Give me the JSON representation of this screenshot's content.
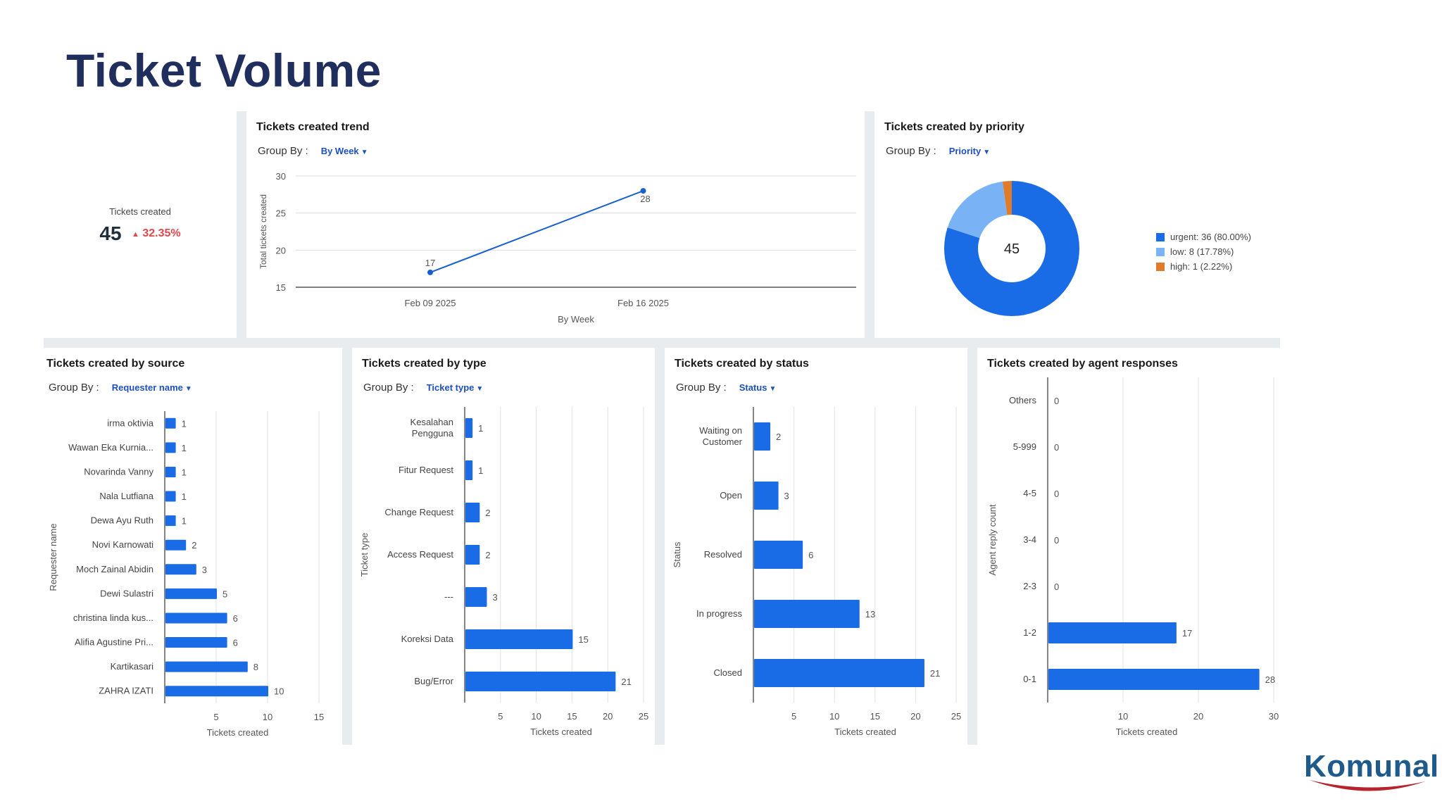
{
  "page": {
    "title": "Ticket Volume"
  },
  "kpi": {
    "label": "Tickets created",
    "value": "45",
    "delta_icon": "▲",
    "delta": "32.35%"
  },
  "group_by_label": "Group By :",
  "colors": {
    "bar": "#1a6be6",
    "line": "#1a5fcf",
    "urgent": "#1a6be6",
    "low": "#7ab3f5",
    "high": "#e07b2a",
    "title": "#1f2e5c"
  },
  "trend": {
    "title": "Tickets created trend",
    "group_value": "By Week",
    "chart_data": {
      "type": "line",
      "x": [
        "Feb 09 2025",
        "Feb 16 2025"
      ],
      "values": [
        17,
        28
      ],
      "point_labels": [
        "17",
        "28"
      ],
      "yticks": [
        "30",
        "25",
        "20",
        "15"
      ],
      "ylim": [
        15,
        30
      ],
      "xlabel": "By Week",
      "ylabel": "Total tickets created"
    }
  },
  "priority": {
    "title": "Tickets created by priority",
    "group_value": "Priority",
    "chart_data": {
      "type": "pie",
      "center_label": "45",
      "slices": [
        {
          "name": "urgent",
          "value": 36,
          "legend": "urgent: 36 (80.00%)"
        },
        {
          "name": "low",
          "value": 8,
          "legend": "low: 8 (17.78%)"
        },
        {
          "name": "high",
          "value": 1,
          "legend": "high: 1 (2.22%)"
        }
      ]
    }
  },
  "source": {
    "title": "Tickets created by source",
    "group_value": "Requester name",
    "chart_data": {
      "type": "bar",
      "categories": [
        "irma oktivia",
        "Wawan Eka Kurnia...",
        "Novarinda Vanny",
        "Nala Lutfiana",
        "Dewa Ayu Ruth",
        "Novi Karnowati",
        "Moch Zainal Abidin",
        "Dewi Sulastri",
        "christina linda kus...",
        "Alifia Agustine Pri...",
        "Kartikasari",
        "ZAHRA IZATI"
      ],
      "values": [
        1,
        1,
        1,
        1,
        1,
        2,
        3,
        5,
        6,
        6,
        8,
        10
      ],
      "value_labels": [
        "1",
        "1",
        "1",
        "1",
        "1",
        "2",
        "3",
        "5",
        "6",
        "6",
        "8",
        "10"
      ],
      "xticks": [
        "5",
        "10",
        "15"
      ],
      "xlim": [
        0,
        15
      ],
      "xlabel": "Tickets created",
      "ylabel": "Requester name"
    }
  },
  "type": {
    "title": "Tickets created by type",
    "group_value": "Ticket type",
    "chart_data": {
      "type": "bar",
      "categories": [
        [
          "Kesalahan",
          "Pengguna"
        ],
        [
          "Fitur Request"
        ],
        [
          "Change Request"
        ],
        [
          "Access Request"
        ],
        [
          "---"
        ],
        [
          "Koreksi Data"
        ],
        [
          "Bug/Error"
        ]
      ],
      "values": [
        1,
        1,
        2,
        2,
        3,
        15,
        21
      ],
      "value_labels": [
        "1",
        "1",
        "2",
        "2",
        "3",
        "15",
        "21"
      ],
      "xticks": [
        "5",
        "10",
        "15",
        "20",
        "25"
      ],
      "xlim": [
        0,
        25
      ],
      "xlabel": "Tickets created",
      "ylabel": "Ticket type"
    }
  },
  "status": {
    "title": "Tickets created by status",
    "group_value": "Status",
    "chart_data": {
      "type": "bar",
      "categories": [
        [
          "Waiting on",
          "Customer"
        ],
        [
          "Open"
        ],
        [
          "Resolved"
        ],
        [
          "In progress"
        ],
        [
          "Closed"
        ]
      ],
      "values": [
        2,
        3,
        6,
        13,
        21
      ],
      "value_labels": [
        "2",
        "3",
        "6",
        "13",
        "21"
      ],
      "xticks": [
        "5",
        "10",
        "15",
        "20",
        "25"
      ],
      "xlim": [
        0,
        25
      ],
      "xlabel": "Tickets created",
      "ylabel": "Status"
    }
  },
  "agent": {
    "title": "Tickets created by agent responses",
    "chart_data": {
      "type": "bar",
      "categories": [
        [
          "Others"
        ],
        [
          "5-999"
        ],
        [
          "4-5"
        ],
        [
          "3-4"
        ],
        [
          "2-3"
        ],
        [
          "1-2"
        ],
        [
          "0-1"
        ]
      ],
      "values": [
        0,
        0,
        0,
        0,
        0,
        17,
        28
      ],
      "value_labels": [
        "0",
        "0",
        "0",
        "0",
        "0",
        "17",
        "28"
      ],
      "xticks": [
        "10",
        "20",
        "30"
      ],
      "xlim": [
        0,
        30
      ],
      "xlabel": "Tickets created",
      "ylabel": "Agent reply count"
    }
  },
  "logo": {
    "text": "Komunal"
  }
}
